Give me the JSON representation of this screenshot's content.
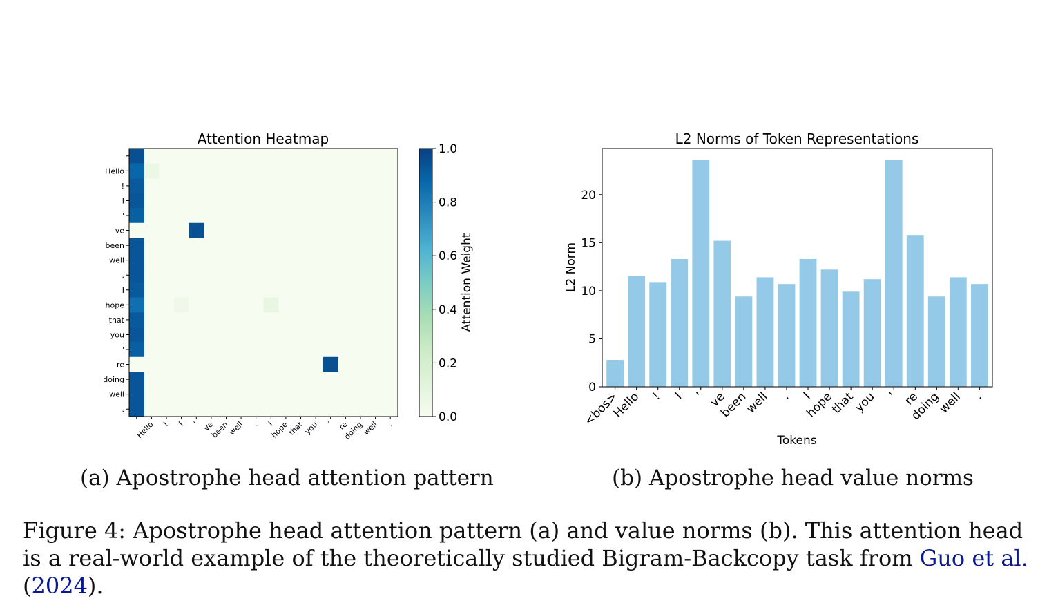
{
  "heatmap": {
    "title": "Attention Heatmap",
    "tokens": [
      "",
      "Hello",
      "!",
      "I",
      "'",
      "ve",
      "been",
      "well",
      ".",
      "I",
      "hope",
      "that",
      "you",
      "'",
      "re",
      "doing",
      "well",
      "."
    ],
    "colorbar_label": "Attention Weight",
    "colorbar_ticks": [
      "0.0",
      "0.2",
      "0.4",
      "0.6",
      "0.8",
      "1.0"
    ],
    "colormap": [
      "#f7fcf0",
      "#e0f3db",
      "#ccebc5",
      "#a8ddb5",
      "#7bccc4",
      "#4eb3d3",
      "#2b8cbe",
      "#0868ac",
      "#084081"
    ],
    "bos_column_weights": [
      0.95,
      0.88,
      0.92,
      0.93,
      0.9,
      0.0,
      0.93,
      0.93,
      0.93,
      0.92,
      0.85,
      0.92,
      0.93,
      0.9,
      0.0,
      0.93,
      0.93,
      0.93
    ],
    "spikes": [
      {
        "row": 5,
        "col": 4,
        "value": 0.95
      },
      {
        "row": 14,
        "col": 13,
        "value": 0.95
      },
      {
        "row": 1,
        "col": 1,
        "value": 0.06
      },
      {
        "row": 10,
        "col": 9,
        "value": 0.08
      },
      {
        "row": 10,
        "col": 3,
        "value": 0.04
      }
    ]
  },
  "chart_data": {
    "type": "bar",
    "title": "L2 Norms of Token Representations",
    "xlabel": "Tokens",
    "ylabel": "L2 Norm",
    "categories": [
      "<bos>",
      "Hello",
      "!",
      "I",
      "'",
      "ve",
      "been",
      "well",
      ".",
      "I",
      "hope",
      "that",
      "you",
      "'",
      "re",
      "doing",
      "well",
      "."
    ],
    "values": [
      2.8,
      11.5,
      10.9,
      13.3,
      23.6,
      15.2,
      9.4,
      11.4,
      10.7,
      13.3,
      12.2,
      9.9,
      11.2,
      23.6,
      15.8,
      9.4,
      11.4,
      10.7
    ],
    "yticks": [
      "0",
      "5",
      "10",
      "15",
      "20"
    ],
    "ylim": [
      0,
      24.8
    ],
    "bar_color": "#94cae7"
  },
  "captions": {
    "a": "(a) Apostrophe head attention pattern",
    "b": "(b) Apostrophe head value norms",
    "figure_main": "Figure 4: Apostrophe head attention pattern (a) and value norms (b). This attention head is a real-world example of the theoretically studied Bigram-Backcopy task from ",
    "cite_author": "Guo et al.",
    "cite_open": " (",
    "cite_year": "2024",
    "cite_close": ")."
  }
}
